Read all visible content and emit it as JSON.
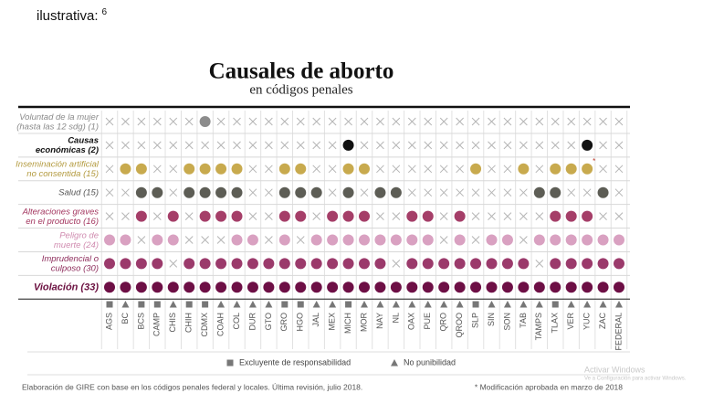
{
  "header": {
    "note": "ilustrativa:",
    "note_ref": "6",
    "title": "Causales de aborto",
    "subtitle": "en códigos penales"
  },
  "columns": [
    {
      "label": "AGS",
      "marker": "square"
    },
    {
      "label": "BC",
      "marker": "triangle"
    },
    {
      "label": "BCS",
      "marker": "square"
    },
    {
      "label": "CAMP",
      "marker": "square"
    },
    {
      "label": "CHIS",
      "marker": "triangle"
    },
    {
      "label": "CHIH",
      "marker": "square"
    },
    {
      "label": "CDMX",
      "marker": "square"
    },
    {
      "label": "COAH",
      "marker": "triangle"
    },
    {
      "label": "COL",
      "marker": "triangle"
    },
    {
      "label": "DUR",
      "marker": "triangle"
    },
    {
      "label": "GTO",
      "marker": "triangle"
    },
    {
      "label": "GRO",
      "marker": "square"
    },
    {
      "label": "HGO",
      "marker": "square"
    },
    {
      "label": "JAL",
      "marker": "triangle"
    },
    {
      "label": "MEX",
      "marker": "triangle"
    },
    {
      "label": "MICH",
      "marker": "square"
    },
    {
      "label": "MOR",
      "marker": "triangle"
    },
    {
      "label": "NAY",
      "marker": "triangle"
    },
    {
      "label": "NL",
      "marker": "triangle"
    },
    {
      "label": "OAX",
      "marker": "triangle"
    },
    {
      "label": "PUE",
      "marker": "triangle"
    },
    {
      "label": "QRO",
      "marker": "triangle"
    },
    {
      "label": "QROO",
      "marker": "triangle"
    },
    {
      "label": "SLP",
      "marker": "square"
    },
    {
      "label": "SIN",
      "marker": "triangle"
    },
    {
      "label": "SON",
      "marker": "triangle"
    },
    {
      "label": "TAB",
      "marker": "triangle"
    },
    {
      "label": "TAMPS",
      "marker": "triangle"
    },
    {
      "label": "TLAX",
      "marker": "square"
    },
    {
      "label": "VER",
      "marker": "triangle"
    },
    {
      "label": "YUC",
      "marker": "triangle"
    },
    {
      "label": "ZAC",
      "marker": "triangle"
    },
    {
      "label": "FEDERAL",
      "marker": "triangle"
    }
  ],
  "rows": [
    {
      "lines": [
        "Voluntad de la mujer",
        "(hasta las 12 sdg) (1)"
      ],
      "label_color": "#8a8a8a",
      "color": "#8c8c8c",
      "cells": [
        0,
        0,
        0,
        0,
        0,
        0,
        1,
        0,
        0,
        0,
        0,
        0,
        0,
        0,
        0,
        0,
        0,
        0,
        0,
        0,
        0,
        0,
        0,
        0,
        0,
        0,
        0,
        0,
        0,
        0,
        0,
        0,
        0
      ]
    },
    {
      "lines": [
        "Causas",
        "económicas (2)"
      ],
      "label_color": "#111111",
      "color": "#111111",
      "cells": [
        0,
        0,
        0,
        0,
        0,
        0,
        0,
        0,
        0,
        0,
        0,
        0,
        0,
        0,
        0,
        1,
        0,
        0,
        0,
        0,
        0,
        0,
        0,
        0,
        0,
        0,
        0,
        0,
        0,
        0,
        1,
        0,
        0
      ]
    },
    {
      "lines": [
        "Inseminación artificial",
        "no consentida (15)"
      ],
      "label_color": "#b39a3e",
      "color": "#c8aa4e",
      "note": "*",
      "note_column": "YUC",
      "cells": [
        0,
        1,
        1,
        0,
        0,
        1,
        1,
        1,
        1,
        0,
        0,
        1,
        1,
        0,
        0,
        1,
        1,
        0,
        0,
        0,
        0,
        0,
        0,
        1,
        0,
        0,
        1,
        0,
        1,
        1,
        1,
        0,
        0
      ]
    },
    {
      "lines": [
        "Salud (15)"
      ],
      "label_color": "#555555",
      "color": "#5d5d55",
      "cells": [
        0,
        0,
        1,
        1,
        0,
        1,
        1,
        1,
        1,
        0,
        0,
        1,
        1,
        1,
        0,
        1,
        0,
        1,
        1,
        0,
        0,
        0,
        0,
        0,
        0,
        0,
        0,
        1,
        1,
        0,
        0,
        1,
        0
      ]
    },
    {
      "lines": [
        "Alteraciones graves",
        "en el producto (16)"
      ],
      "label_color": "#a3365f",
      "color": "#a53e68",
      "cells": [
        0,
        0,
        1,
        0,
        1,
        0,
        1,
        1,
        1,
        0,
        0,
        1,
        1,
        0,
        1,
        1,
        1,
        0,
        0,
        1,
        1,
        0,
        1,
        0,
        0,
        0,
        0,
        0,
        1,
        1,
        1,
        0,
        0
      ]
    },
    {
      "lines": [
        "Peligro de",
        "muerte (24)"
      ],
      "label_color": "#d08cb0",
      "color": "#d9a1c1",
      "cells": [
        1,
        1,
        0,
        1,
        1,
        0,
        0,
        0,
        1,
        1,
        0,
        1,
        0,
        1,
        1,
        1,
        1,
        1,
        1,
        1,
        1,
        0,
        1,
        0,
        1,
        1,
        0,
        1,
        1,
        1,
        1,
        1,
        1
      ]
    },
    {
      "lines": [
        "Imprudencial o",
        "culposo (30)"
      ],
      "label_color": "#8e2d5c",
      "color": "#9b3a6b",
      "cells": [
        1,
        1,
        1,
        1,
        0,
        1,
        1,
        1,
        1,
        1,
        1,
        1,
        1,
        1,
        1,
        1,
        1,
        1,
        0,
        1,
        1,
        1,
        1,
        1,
        1,
        1,
        1,
        0,
        1,
        1,
        1,
        1,
        1
      ]
    },
    {
      "lines": [
        "Violación (33)"
      ],
      "label_color": "#6b1040",
      "color": "#6d0f45",
      "cells": [
        1,
        1,
        1,
        1,
        1,
        1,
        1,
        1,
        1,
        1,
        1,
        1,
        1,
        1,
        1,
        1,
        1,
        1,
        1,
        1,
        1,
        1,
        1,
        1,
        1,
        1,
        1,
        1,
        1,
        1,
        1,
        1,
        1
      ]
    }
  ],
  "legend": [
    {
      "marker": "square",
      "label": "Excluyente de responsabilidad"
    },
    {
      "marker": "triangle",
      "label": "No punibilidad"
    }
  ],
  "footer": {
    "source": "Elaboración de GIRE con base en los códigos penales federal y locales. Última revisión, julio 2018.",
    "note": "* Modificación aprobada en marzo de 2018"
  },
  "watermark": [
    "Activar Windows",
    "Ve a Configuración para activar Windows."
  ]
}
